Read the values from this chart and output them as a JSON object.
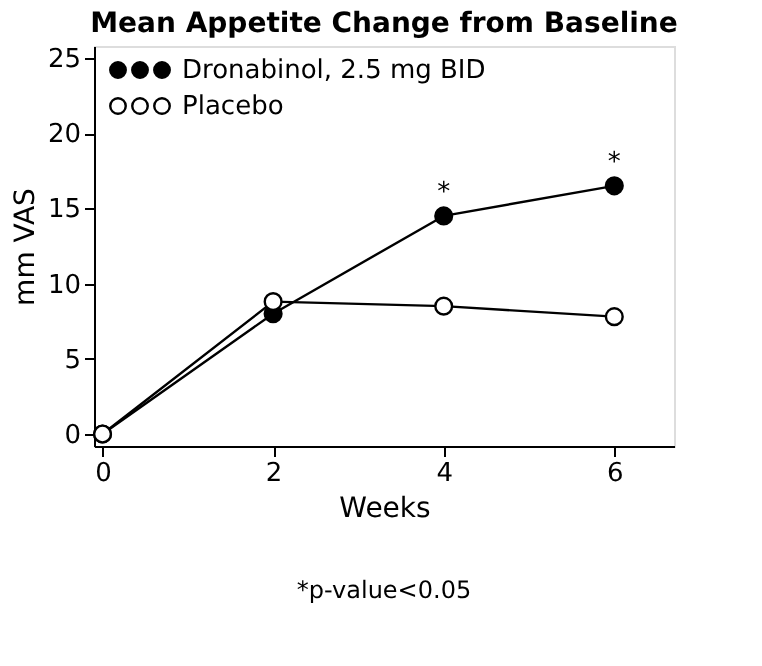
{
  "chart_data": {
    "type": "line",
    "title": "Mean Appetite Change from Baseline",
    "xlabel": "Weeks",
    "ylabel": "mm VAS",
    "x": [
      0,
      2,
      4,
      6
    ],
    "series": [
      {
        "name": "Dronabinol, 2.5 mg BID",
        "color": "#000000",
        "values": [
          0,
          8,
          14.5,
          16.5
        ]
      },
      {
        "name": "Placebo",
        "color": "#000000",
        "values": [
          0,
          8.8,
          8.5,
          7.8
        ]
      }
    ],
    "xlim": [
      -0.1,
      6.7
    ],
    "xticks": [
      0,
      2,
      4,
      6
    ],
    "ylim": [
      -0.8,
      25.8
    ],
    "yticks": [
      0,
      5,
      10,
      15,
      20,
      25
    ],
    "grid": false,
    "legend": "top left",
    "marker": "circle",
    "line_style": "solid",
    "annotations": [
      {
        "text": "*",
        "x": 4,
        "y": 14.5
      },
      {
        "text": "*",
        "x": 6,
        "y": 16.5
      },
      "*p-value<0.05"
    ]
  }
}
